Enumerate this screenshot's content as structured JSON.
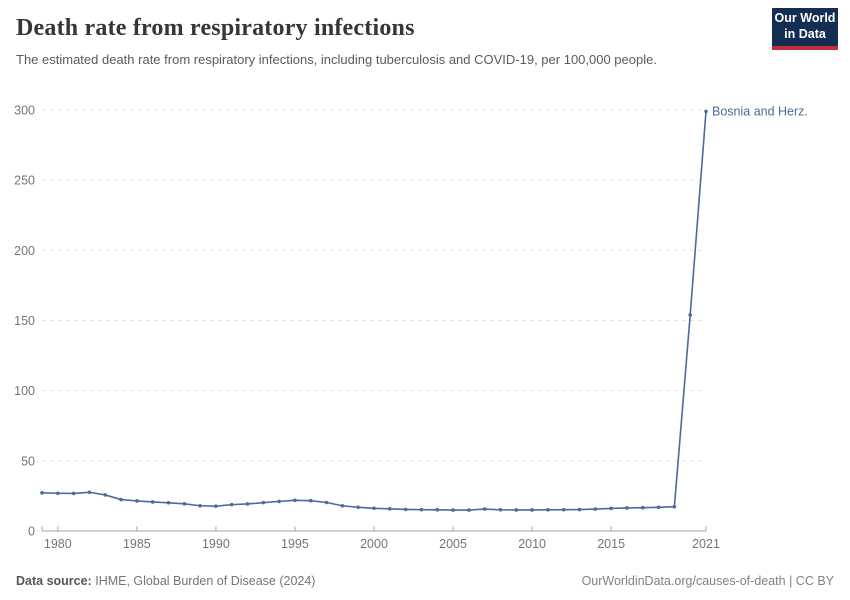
{
  "chart_data": {
    "type": "line",
    "title": "Death rate from respiratory infections",
    "subtitle": "The estimated death rate from respiratory infections, including tuberculosis and COVID-19, per 100,000 people.",
    "xlabel": "",
    "ylabel": "",
    "x": [
      1979,
      1980,
      1981,
      1982,
      1983,
      1984,
      1985,
      1986,
      1987,
      1988,
      1989,
      1990,
      1991,
      1992,
      1993,
      1994,
      1995,
      1996,
      1997,
      1998,
      1999,
      2000,
      2001,
      2002,
      2003,
      2004,
      2005,
      2006,
      2007,
      2008,
      2009,
      2010,
      2011,
      2012,
      2013,
      2014,
      2015,
      2016,
      2017,
      2018,
      2019,
      2020,
      2021
    ],
    "series": [
      {
        "name": "Bosnia and Herz.",
        "values": [
          27.2,
          26.9,
          26.8,
          27.6,
          25.7,
          22.4,
          21.4,
          20.7,
          20.1,
          19.4,
          18,
          17.7,
          18.8,
          19.3,
          20.2,
          21.1,
          21.9,
          21.6,
          20.3,
          18,
          16.9,
          16.2,
          15.8,
          15.4,
          15.2,
          15.1,
          14.9,
          14.9,
          15.6,
          15.1,
          15,
          15,
          15.1,
          15.2,
          15.3,
          15.6,
          16.1,
          16.4,
          16.6,
          16.9,
          17.3,
          154,
          299
        ]
      }
    ],
    "xlim": [
      1979,
      2021
    ],
    "ylim": [
      0,
      300
    ],
    "yticks": [
      0,
      50,
      100,
      150,
      200,
      250,
      300
    ],
    "xticks": [
      1980,
      1985,
      1990,
      1995,
      2000,
      2005,
      2010,
      2015,
      2021
    ],
    "grid": true,
    "legend_position": "end-of-line label",
    "colors": {
      "line": "#4c6a9c",
      "grid": "#e2e2e2",
      "axis": "#a5a5a5",
      "axis_text": "#757575"
    }
  },
  "logo": {
    "line1": "Our World",
    "line2": "in Data",
    "bg": "#142e52",
    "accent": "#c0303c"
  },
  "footer": {
    "source_label": "Data source:",
    "source_text": "IHME, Global Burden of Disease (2024)",
    "license": "OurWorldinData.org/causes-of-death | CC BY"
  }
}
